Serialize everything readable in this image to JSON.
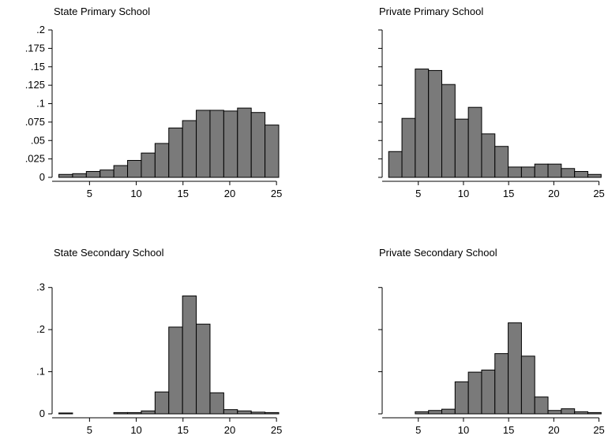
{
  "chart_data": [
    {
      "type": "bar",
      "title": "State Primary School",
      "xlabel": "",
      "ylabel": "",
      "bin_width": 1.47,
      "xlim": [
        1.0,
        26.0
      ],
      "ylim": [
        0,
        0.2
      ],
      "xticks": [
        5,
        10,
        15,
        20,
        25
      ],
      "xtick_labels": [
        "5",
        "10",
        "15",
        "20",
        "25"
      ],
      "yticks": [
        0,
        0.025,
        0.05,
        0.075,
        0.1,
        0.125,
        0.15,
        0.175,
        0.2
      ],
      "ytick_labels": [
        "0",
        ".025",
        ".05",
        ".075",
        ".1",
        ".125",
        ".15",
        ".175",
        ".2"
      ],
      "bin_starts": [
        1.72,
        3.19,
        4.66,
        6.13,
        7.6,
        9.07,
        10.54,
        12.01,
        13.48,
        14.95,
        16.42,
        17.89,
        19.36,
        20.83,
        22.3,
        23.77
      ],
      "values": [
        0.004,
        0.005,
        0.008,
        0.01,
        0.016,
        0.023,
        0.033,
        0.046,
        0.067,
        0.077,
        0.091,
        0.091,
        0.09,
        0.094,
        0.088,
        0.071
      ]
    },
    {
      "type": "bar",
      "title": "Private Primary School",
      "xlabel": "",
      "ylabel": "",
      "bin_width": 1.47,
      "xlim": [
        1.0,
        26.0
      ],
      "ylim": [
        0,
        0.2
      ],
      "xticks": [
        5,
        10,
        15,
        20,
        25
      ],
      "xtick_labels": [
        "5",
        "10",
        "15",
        "20",
        "25"
      ],
      "yticks": [
        0,
        0.025,
        0.05,
        0.075,
        0.1,
        0.125,
        0.15,
        0.175,
        0.2
      ],
      "ytick_labels": [
        "",
        "",
        "",
        "",
        "",
        "",
        "",
        "",
        ""
      ],
      "bin_starts": [
        1.72,
        3.19,
        4.66,
        6.13,
        7.6,
        9.07,
        10.54,
        12.01,
        13.48,
        14.95,
        16.42,
        17.89,
        19.36,
        20.83,
        22.3,
        23.77
      ],
      "values": [
        0.035,
        0.08,
        0.147,
        0.145,
        0.126,
        0.079,
        0.095,
        0.059,
        0.042,
        0.014,
        0.014,
        0.018,
        0.018,
        0.012,
        0.008,
        0.004
      ]
    },
    {
      "type": "bar",
      "title": "State Secondary School",
      "xlabel": "",
      "ylabel": "",
      "bin_width": 1.47,
      "xlim": [
        1.0,
        26.0
      ],
      "ylim": [
        0,
        0.35
      ],
      "xticks": [
        5,
        10,
        15,
        20,
        25
      ],
      "xtick_labels": [
        "5",
        "10",
        "15",
        "20",
        "25"
      ],
      "yticks": [
        0,
        0.1,
        0.2,
        0.3
      ],
      "ytick_labels": [
        "0",
        ".1",
        ".2",
        ".3"
      ],
      "bin_starts": [
        1.72,
        3.19,
        4.66,
        6.13,
        7.6,
        9.07,
        10.54,
        12.01,
        13.48,
        14.95,
        16.42,
        17.89,
        19.36,
        20.83,
        22.3,
        23.77
      ],
      "values": [
        0.002,
        0,
        0,
        0,
        0.003,
        0.003,
        0.007,
        0.052,
        0.206,
        0.28,
        0.213,
        0.05,
        0.01,
        0.007,
        0.004,
        0.003
      ]
    },
    {
      "type": "bar",
      "title": "Private Secondary School",
      "xlabel": "",
      "ylabel": "",
      "bin_width": 1.47,
      "xlim": [
        1.0,
        26.0
      ],
      "ylim": [
        0,
        0.35
      ],
      "xticks": [
        5,
        10,
        15,
        20,
        25
      ],
      "xtick_labels": [
        "5",
        "10",
        "15",
        "20",
        "25"
      ],
      "yticks": [
        0,
        0.1,
        0.2,
        0.3
      ],
      "ytick_labels": [
        "",
        "",
        "",
        ""
      ],
      "bin_starts": [
        1.72,
        3.19,
        4.66,
        6.13,
        7.6,
        9.07,
        10.54,
        12.01,
        13.48,
        14.95,
        16.42,
        17.89,
        19.36,
        20.83,
        22.3,
        23.77
      ],
      "values": [
        0,
        0,
        0.005,
        0.008,
        0.011,
        0.076,
        0.099,
        0.104,
        0.143,
        0.216,
        0.137,
        0.04,
        0.008,
        0.012,
        0.005,
        0.003
      ]
    }
  ],
  "colors": {
    "bar_fill": "#7a7a7a",
    "bar_stroke": "#000000",
    "axis": "#000000",
    "background": "#ffffff"
  }
}
